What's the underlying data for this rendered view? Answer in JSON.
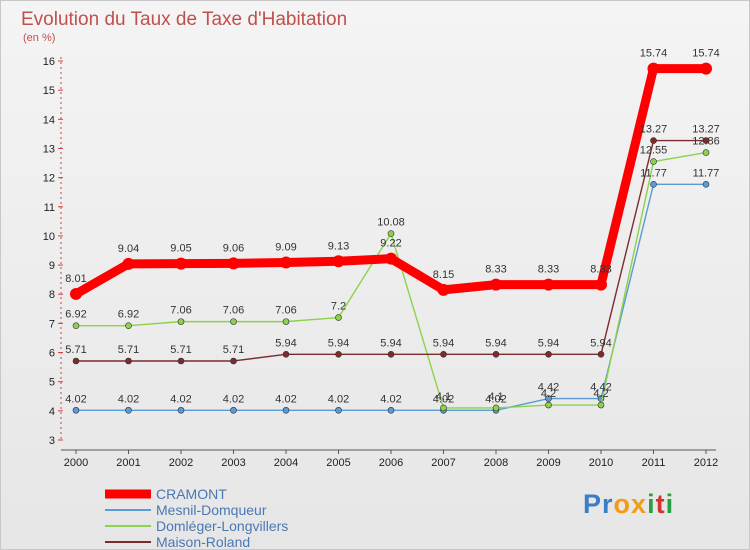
{
  "brand": {
    "text": "Proxiti",
    "letters": [
      {
        "ch": "P",
        "color": "#3a7ec9"
      },
      {
        "ch": "r",
        "color": "#3a7ec9"
      },
      {
        "ch": "o",
        "color": "#f39c12"
      },
      {
        "ch": "x",
        "color": "#f39c12"
      },
      {
        "ch": "i",
        "color": "#27a243"
      },
      {
        "ch": "t",
        "color": "#d93030"
      },
      {
        "ch": "i",
        "color": "#27a243"
      }
    ]
  },
  "chart_data": {
    "type": "line",
    "title": "Evolution du Taux de Taxe d'Habitation",
    "subtitle": "(en %)",
    "xlabel": "",
    "ylabel": "",
    "x": [
      "2000",
      "2001",
      "2002",
      "2003",
      "2004",
      "2005",
      "2006",
      "2007",
      "2008",
      "2009",
      "2010",
      "2011",
      "2012"
    ],
    "ylim": [
      3,
      16
    ],
    "yticks": [
      3,
      4,
      5,
      6,
      7,
      8,
      9,
      10,
      11,
      12,
      13,
      14,
      15,
      16
    ],
    "grid": false,
    "legend_position": "bottom-left",
    "series": [
      {
        "name": "CRAMONT",
        "color": "#ff0000",
        "bold": true,
        "values": [
          8.01,
          9.04,
          9.05,
          9.06,
          9.09,
          9.13,
          9.22,
          8.15,
          8.33,
          8.33,
          8.33,
          15.74,
          15.74
        ],
        "labels": [
          "8.01",
          "9.04",
          "9.05",
          "9.06",
          "9.09",
          "9.13",
          "9.22",
          "8.15",
          "8.33",
          "8.33",
          "8.33",
          "15.74",
          "15.74"
        ]
      },
      {
        "name": "Mesnil-Domqueur",
        "color": "#5b9bd5",
        "values": [
          4.02,
          4.02,
          4.02,
          4.02,
          4.02,
          4.02,
          4.02,
          4.02,
          4.02,
          4.42,
          4.42,
          11.77,
          11.77
        ],
        "labels": [
          "4.02",
          "4.02",
          "4.02",
          "4.02",
          "4.02",
          "4.02",
          "4.02",
          "4.02",
          "4.02",
          "4.42",
          "4.42",
          "11.77",
          "11.77"
        ]
      },
      {
        "name": "Domléger-Longvillers",
        "color": "#8cd24a",
        "values": [
          6.92,
          6.92,
          7.06,
          7.06,
          7.06,
          7.2,
          10.08,
          4.1,
          4.1,
          4.2,
          4.2,
          12.55,
          12.86
        ],
        "labels": [
          "6.92",
          "6.92",
          "7.06",
          "7.06",
          "7.06",
          "7.2",
          "10.08",
          "4.1",
          "4.1",
          "4.2",
          "4.2",
          "12.55",
          "12.86"
        ]
      },
      {
        "name": "Maison-Roland",
        "color": "#7b2c2c",
        "values": [
          5.71,
          5.71,
          5.71,
          5.71,
          5.94,
          5.94,
          5.94,
          5.94,
          5.94,
          5.94,
          5.94,
          13.27,
          13.27
        ],
        "labels": [
          "5.71",
          "5.71",
          "5.71",
          "5.71",
          "5.94",
          "5.94",
          "5.94",
          "5.94",
          "5.94",
          "5.94",
          "5.94",
          "13.27",
          "13.27"
        ]
      }
    ]
  }
}
